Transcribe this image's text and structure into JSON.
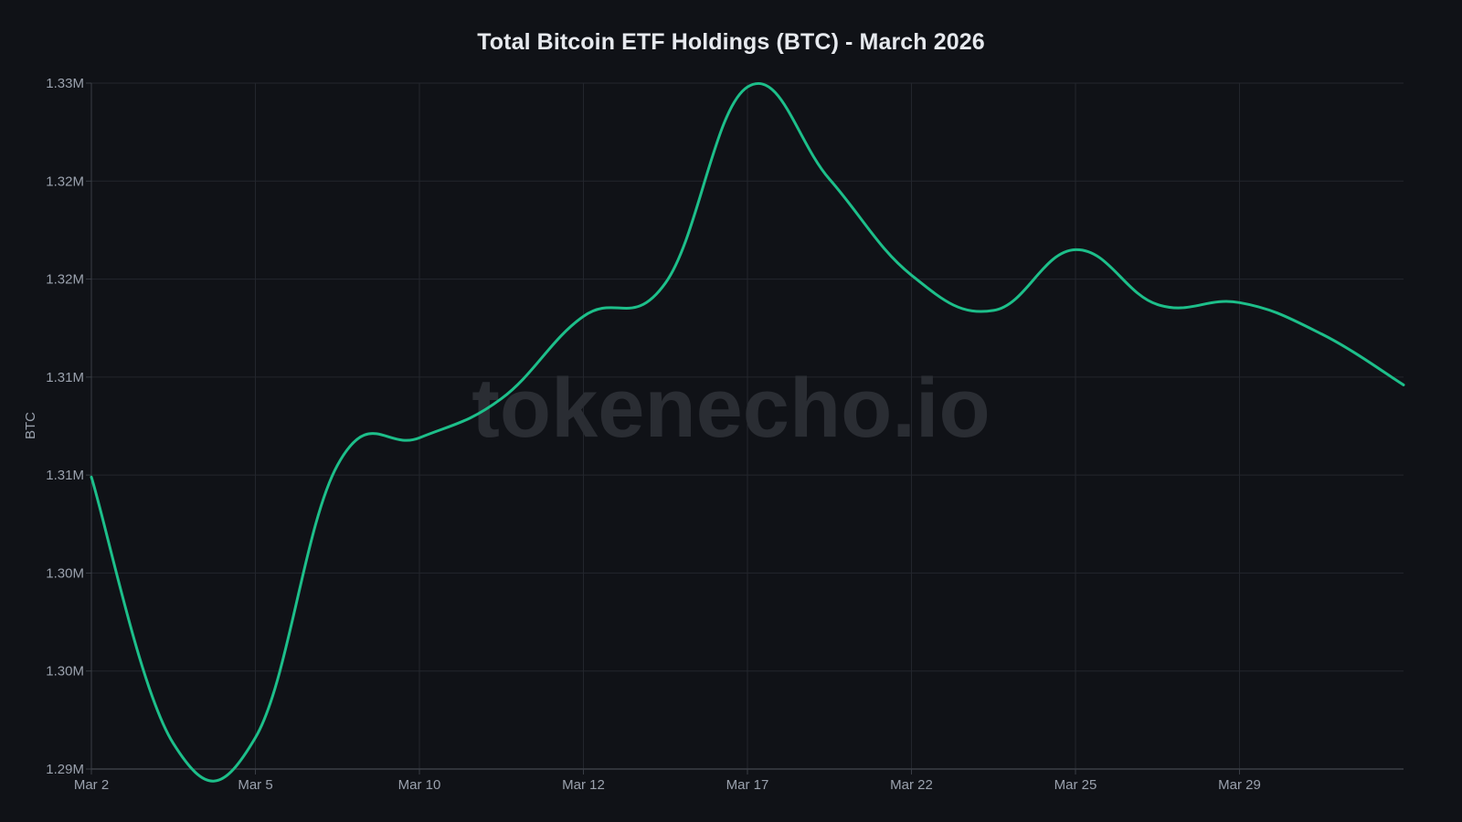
{
  "title": "Total Bitcoin ETF Holdings (BTC) - March 2026",
  "watermark": "tokenecho.io",
  "colors": {
    "background": "#101217",
    "line": "#1dbf8a",
    "grid": "#23262d",
    "axis": "#3a3e46",
    "text": "#9aa1ad",
    "title": "#e6e9ee",
    "watermark": "#2a2d33"
  },
  "chart_data": {
    "type": "line",
    "title": "Total Bitcoin ETF Holdings (BTC) - March 2026",
    "xlabel": "",
    "ylabel": "BTC",
    "x_tick_labels": [
      "Mar 2",
      "Mar 5",
      "Mar 10",
      "Mar 12",
      "Mar 17",
      "Mar 22",
      "Mar 25",
      "Mar 29"
    ],
    "y_tick_labels": [
      "1.33M",
      "1.32M",
      "1.32M",
      "1.31M",
      "1.31M",
      "1.30M",
      "1.30M",
      "1.29M"
    ],
    "y_ticks": [
      1330000,
      1325000,
      1320000,
      1315000,
      1310000,
      1305000,
      1300000,
      1295000
    ],
    "ylim": [
      1295000,
      1330000
    ],
    "grid": true,
    "legend": null,
    "line_smoothing": "spline",
    "series": [
      {
        "name": "Total Bitcoin ETF Holdings",
        "point_index": [
          0,
          1,
          2,
          3,
          4,
          5,
          6,
          7,
          8,
          9,
          10,
          11,
          12,
          13,
          14,
          15,
          16
        ],
        "values": [
          1309900,
          1296300,
          1296600,
          1310500,
          1311900,
          1313900,
          1318100,
          1319800,
          1329800,
          1325100,
          1320200,
          1318400,
          1321500,
          1318700,
          1318800,
          1317200,
          1314600
        ]
      }
    ],
    "x_tick_point_index": [
      0,
      2,
      4,
      6,
      8,
      10,
      12,
      14
    ]
  }
}
